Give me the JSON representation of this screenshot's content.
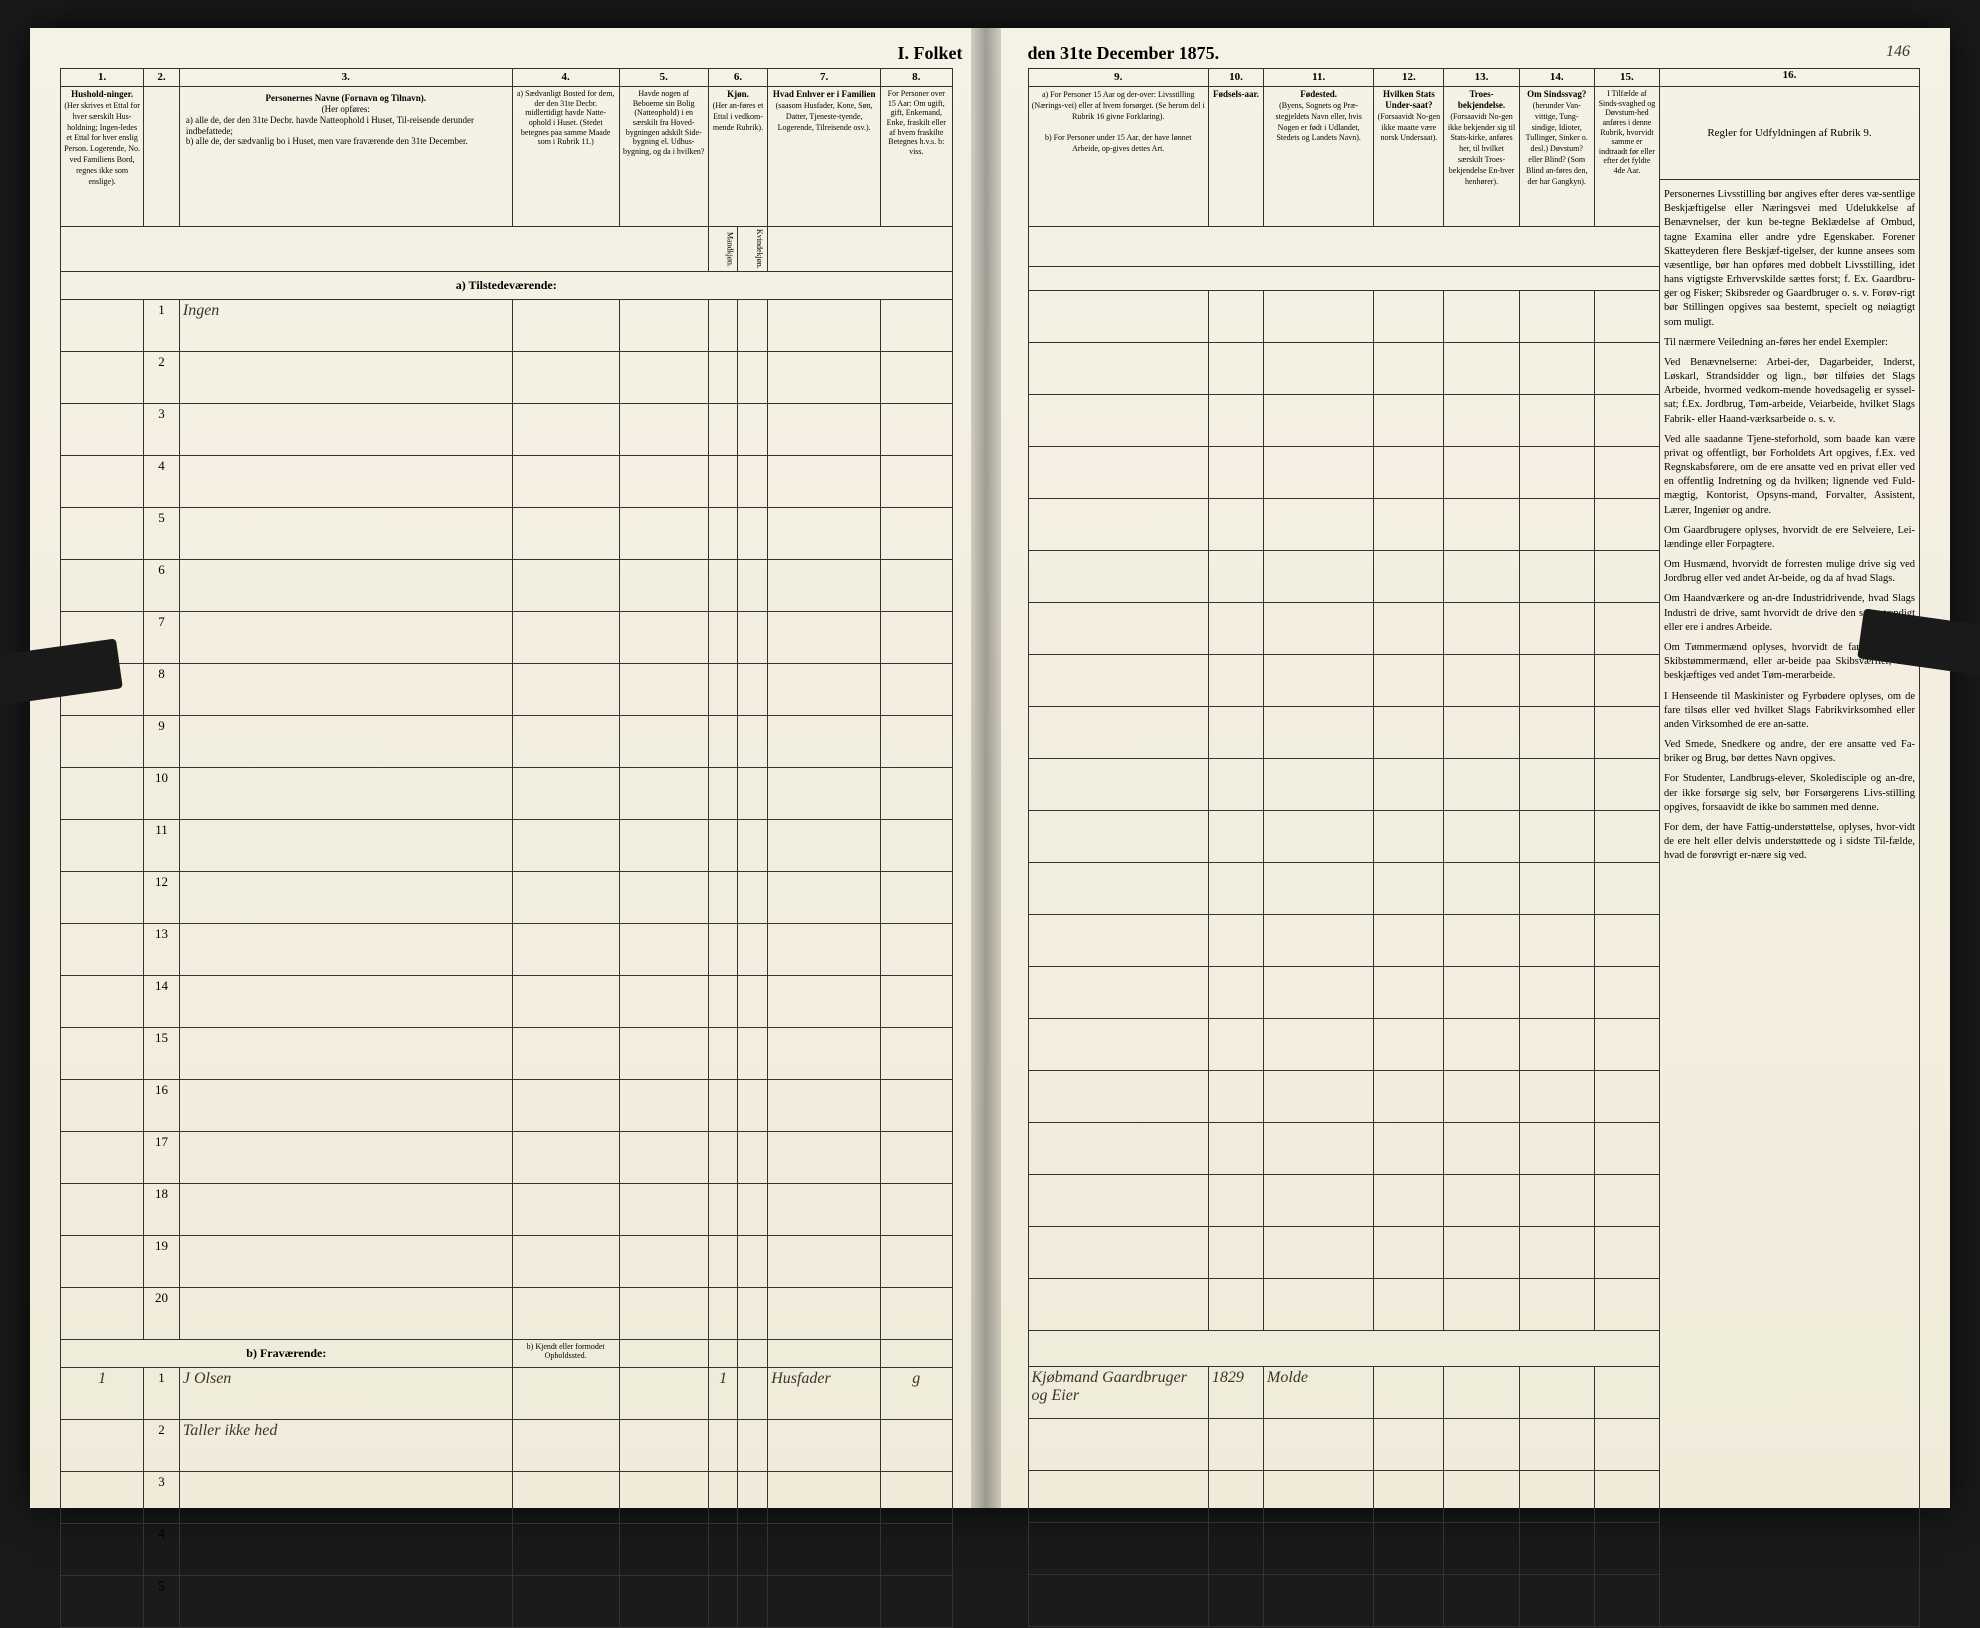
{
  "document": {
    "title_left": "I. Folket",
    "title_right": "den 31te December 1875.",
    "page_number": "146",
    "background_color": "#f4f0e4",
    "ink_color": "#2a2518",
    "rule_color": "#333333"
  },
  "left_page": {
    "columns": {
      "c1": {
        "num": "1.",
        "header": "Hushold-ninger.",
        "sub": "(Her skrives et Ettal for hver særskilt Hus-holdning; Ingen-ledes et Ettal for hver enslig Person. Logerende, No. ved Familiens Bord, regnes ikke som enslige)."
      },
      "c2": {
        "num": "2."
      },
      "c3": {
        "num": "3.",
        "header": "Personernes Navne (Fornavn og Tilnavn).",
        "sub_header": "(Her opføres:",
        "line_a": "a) alle de, der den 31te Decbr. havde Natteophold i Huset, Til-reisende derunder indbefattede;",
        "line_b": "b) alle de, der sædvanlig bo i Huset, men vare fraværende den 31te December."
      },
      "c4": {
        "num": "4.",
        "header": "a) Sædvanligt Bosted for dem, der den 31te Decbr. midlertidigt havde Natte-ophold i Huset. (Stedet betegnes paa samme Maade som i Rubrik 11.)"
      },
      "c5": {
        "num": "5.",
        "header": "Havde nogen af Beboerne sin Bolig (Natteophold) i en særskilt fra Hoved-bygningen adskilt Side-bygning el. Udhus-bygning, og da i hvilken?"
      },
      "c6": {
        "num": "6.",
        "header": "Kjøn.",
        "sub_a": "(Her an-føres et Ettal i vedkom-mende Rubrik).",
        "col_m": "Mandkjøn.",
        "col_k": "Kvindekjøn."
      },
      "c7": {
        "num": "7.",
        "header": "Hvad Enhver er i Familien",
        "sub": "(saasom Husfader, Kone, Søn, Datter, Tjeneste-tyende, Logerende, Tilreisende osv.)."
      },
      "c8": {
        "num": "8.",
        "header": "For Personer over 15 Aar: Om ugift, gift, Enkemand, Enke, fraskilt eller af hvem fraskilte Betegnes h.v.s. b: viss."
      }
    },
    "sections": {
      "present": "a) Tilstedeværende:",
      "present_entry": "Ingen",
      "absent": "b) Fraværende:",
      "absent_sub": "b) Kjendt eller formodet Opholdssted."
    },
    "rows_present": [
      1,
      2,
      3,
      4,
      5,
      6,
      7,
      8,
      9,
      10,
      11,
      12,
      13,
      14,
      15,
      16,
      17,
      18,
      19,
      20
    ],
    "rows_absent": [
      {
        "num": 1,
        "hh": "1",
        "name": "J Olsen",
        "c4": "",
        "c6m": "1",
        "c7": "Husfader",
        "c8": "g"
      },
      {
        "num": 2,
        "hh": "",
        "name": "Taller ikke hed",
        "c4": "",
        "c6m": "",
        "c7": "",
        "c8": ""
      },
      {
        "num": 3
      },
      {
        "num": 4
      },
      {
        "num": 5
      }
    ]
  },
  "right_page": {
    "columns": {
      "c9": {
        "num": "9.",
        "header": "a) For Personer 15 Aar og der-over: Livsstilling (Nærings-vei) eller af hvem forsørget. (Se herom del i Rubrik 16 givne Forklaring).",
        "sub": "b) For Personer under 15 Aar, der have lønnet Arbeide, op-gives dettes Art."
      },
      "c10": {
        "num": "10.",
        "header": "Fødsels-aar."
      },
      "c11": {
        "num": "11.",
        "header": "Fødested.",
        "sub": "(Byens, Sognets og Præ-stegjeldets Navn eller, hvis Nogen er født i Udlandet, Stedets og Landets Navn)."
      },
      "c12": {
        "num": "12.",
        "header": "Hvilken Stats Under-saat?",
        "sub": "(Forsaavidt No-gen ikke maatte være norsk Undersaat)."
      },
      "c13": {
        "num": "13.",
        "header": "Troes-bekjendelse.",
        "sub": "(Forsaavidt No-gen ikke bekjender sig til Stats-kirke, anføres her, til hvilket særskilt Troes-bekjendelse En-hver henhører)."
      },
      "c14": {
        "num": "14.",
        "header": "Om Sindssvag?",
        "sub": "(herunder Van-vittige, Tung-sindige, Idioter, Tullinger, Sinker o. desl.) Døvstum? eller Blind? (Som Blind an-føres den, der har Gangkyn)."
      },
      "c15": {
        "num": "15.",
        "header": "I Tilfælde af Sinds-svaghed og Døvstum-hed anføres i denne Rubrik, hvorvidt samme er indtraadt før eller efter det fyldte 4de Aar."
      },
      "c16": {
        "num": "16.",
        "header": "Regler for Udfyldningen af Rubrik 9."
      }
    },
    "absent_data": [
      {
        "c9": "Kjøbmand Gaardbruger og Eier",
        "c10": "1829",
        "c11": "Molde"
      }
    ],
    "instructions": {
      "p1": "Personernes Livsstilling bør angives efter deres væ-sentlige Beskjæftigelse eller Næringsvei med Udelukkelse af Benævnelser, der kun be-tegne Beklædelse af Ombud, tagne Examina eller andre ydre Egenskaber. Forener Skatteyderen flere Beskjæf-tigelser, der kunne ansees som væsentlige, bør han opføres med dobbelt Livsstilling, idet hans vigtigste Erhvervskilde sættes forst; f. Ex. Gaardbru-ger og Fisker; Skibsreder og Gaardbruger o. s. v. Forøv-rigt bør Stillingen opgives saa bestemt, specielt og nøiagtigt som muligt.",
      "p2": "Til nærmere Veiledning an-føres her endel Exempler:",
      "p3": "Ved Benævnelserne: Arbei-der, Dagarbeider, Inderst, Løskarl, Strandsidder og lign., bør tilføies det Slags Arbeide, hvormed vedkom-mende hovedsagelig er syssel-sat; f.Ex. Jordbrug, Tøm-arbeide, Veiarbeide, hvilket Slags Fabrik- eller Haand-værksarbeide o. s. v.",
      "p4": "Ved alle saadanne Tjene-steforhold, som baade kan være privat og offentligt, bør Forholdets Art opgives, f.Ex. ved Regnskabsførere, om de ere ansatte ved en privat eller ved en offentlig Indretning og da hvilken; lignende ved Fuld-mægtig, Kontorist, Opsyns-mand, Forvalter, Assistent, Lærer, Ingeniør og andre.",
      "p5": "Om Gaardbrugere oplyses, hvorvidt de ere Selveiere, Lei-lændinge eller Forpagtere.",
      "p6": "Om Husmænd, hvorvidt de forresten mulige drive sig ved Jordbrug eller ved andet Ar-beide, og da af hvad Slags.",
      "p7": "Om Haandværkere og an-dre Industridrivende, hvad Slags Industri de drive, samt hvorvidt de drive den selv-stændigt eller ere i andres Arbeide.",
      "p8": "Om Tømmermænd oplyses, hvorvidt de fare tilsøs som Skibstømmermænd, eller ar-beide paa Skibsværfter, eller beskjæftiges ved andet Tøm-merarbeide.",
      "p9": "I Henseende til Maskinister og Fyrbødere oplyses, om de fare tilsøs eller ved hvilket Slags Fabrikvirksomhed eller anden Virksomhed de ere an-satte.",
      "p10": "Ved Smede, Snedkere og andre, der ere ansatte ved Fa-briker og Brug, bør dettes Navn opgives.",
      "p11": "For Studenter, Landbrugs-elever, Skoledisciple og an-dre, der ikke forsørge sig selv, bør Forsørgerens Livs-stilling opgives, forsaavidt de ikke bo sammen med denne.",
      "p12": "For dem, der have Fattig-understøttelse, oplyses, hvor-vidt de ere helt eller delvis understøttede og i sidste Til-fælde, hvad de forøvrigt er-nære sig ved."
    }
  }
}
